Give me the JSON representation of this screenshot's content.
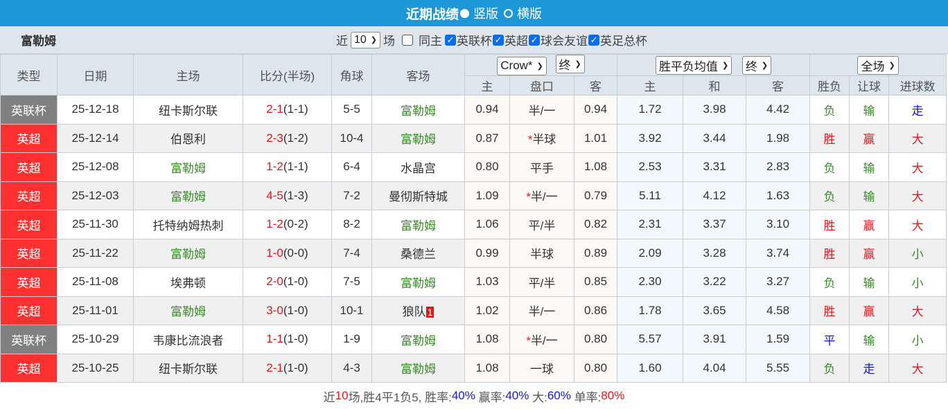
{
  "title": {
    "text": "近期战绩",
    "option1": "竖版",
    "option2": "横版",
    "selected": "竖版"
  },
  "filter": {
    "team": "富勒姆",
    "prefix": "近",
    "count": "10",
    "suffix": "场",
    "same_host": "同主",
    "same_host_checked": false,
    "leagues": [
      {
        "label": "英联杯",
        "checked": true
      },
      {
        "label": "英超",
        "checked": true
      },
      {
        "label": "球会友谊",
        "checked": true
      },
      {
        "label": "英足总杯",
        "checked": true
      }
    ]
  },
  "header": {
    "cols": [
      "类型",
      "日期",
      "主场",
      "比分(半场)",
      "角球",
      "客场"
    ],
    "company": "Crow*",
    "company_time": "终",
    "avg": "胜平负均值",
    "avg_time": "终",
    "scope": "全场",
    "sub": [
      "主",
      "盘口",
      "客",
      "主",
      "和",
      "客",
      "胜负",
      "让球",
      "进球数"
    ]
  },
  "colors": {
    "title_bar": "#1e97d9",
    "cup": "#808080",
    "league": "#fe3030",
    "win": "#e8141b",
    "lose": "#3a8a2a",
    "draw": "#1515e0",
    "fulham": "#3a8a2a"
  },
  "rows": [
    {
      "type": "英联杯",
      "date": "25-12-18",
      "home": "纽卡斯尔联",
      "score": "2-1",
      "half": "(1-1)",
      "corner": "5-5",
      "away": "富勒姆",
      "h": "0.94",
      "star": "",
      "line": "半/一",
      "a": "0.94",
      "w": "1.72",
      "d": "3.98",
      "l": "4.42",
      "r1": "负",
      "r2": "输",
      "r3": "走"
    },
    {
      "type": "英超",
      "date": "25-12-14",
      "home": "伯恩利",
      "score": "2-3",
      "half": "(1-2)",
      "corner": "10-4",
      "away": "富勒姆",
      "h": "0.87",
      "star": "*",
      "line": "半球",
      "a": "1.01",
      "w": "3.92",
      "d": "3.44",
      "l": "1.98",
      "r1": "胜",
      "r2": "赢",
      "r3": "大"
    },
    {
      "type": "英超",
      "date": "25-12-08",
      "home": "富勒姆",
      "score": "1-2",
      "half": "(1-1)",
      "corner": "6-4",
      "away": "水晶宫",
      "h": "0.80",
      "star": "",
      "line": "平手",
      "a": "1.08",
      "w": "2.53",
      "d": "3.31",
      "l": "2.83",
      "r1": "负",
      "r2": "输",
      "r3": "大"
    },
    {
      "type": "英超",
      "date": "25-12-03",
      "home": "富勒姆",
      "score": "4-5",
      "half": "(1-3)",
      "corner": "7-2",
      "away": "曼彻斯特城",
      "h": "1.09",
      "star": "*",
      "line": "半/一",
      "a": "0.79",
      "w": "5.11",
      "d": "4.12",
      "l": "1.63",
      "r1": "负",
      "r2": "输",
      "r3": "大"
    },
    {
      "type": "英超",
      "date": "25-11-30",
      "home": "托特纳姆热刺",
      "score": "1-2",
      "half": "(0-2)",
      "corner": "8-2",
      "away": "富勒姆",
      "h": "1.06",
      "star": "",
      "line": "平/半",
      "a": "0.82",
      "w": "2.31",
      "d": "3.37",
      "l": "3.10",
      "r1": "胜",
      "r2": "赢",
      "r3": "大"
    },
    {
      "type": "英超",
      "date": "25-11-22",
      "home": "富勒姆",
      "score": "1-0",
      "half": "(0-0)",
      "corner": "7-4",
      "away": "桑德兰",
      "h": "0.99",
      "star": "",
      "line": "半球",
      "a": "0.89",
      "w": "2.09",
      "d": "3.28",
      "l": "3.74",
      "r1": "胜",
      "r2": "赢",
      "r3": "小"
    },
    {
      "type": "英超",
      "date": "25-11-08",
      "home": "埃弗顿",
      "score": "2-0",
      "half": "(1-0)",
      "corner": "7-5",
      "away": "富勒姆",
      "h": "1.03",
      "star": "",
      "line": "平/半",
      "a": "0.85",
      "w": "2.30",
      "d": "3.22",
      "l": "3.27",
      "r1": "负",
      "r2": "输",
      "r3": "小"
    },
    {
      "type": "英超",
      "date": "25-11-01",
      "home": "富勒姆",
      "score": "3-0",
      "half": "(1-0)",
      "corner": "10-1",
      "away": "狼队",
      "away_badge": "1",
      "h": "1.02",
      "star": "",
      "line": "半/一",
      "a": "0.86",
      "w": "1.78",
      "d": "3.65",
      "l": "4.58",
      "r1": "胜",
      "r2": "赢",
      "r3": "大"
    },
    {
      "type": "英联杯",
      "date": "25-10-29",
      "home": "韦康比流浪者",
      "score": "1-1",
      "half": "(1-0)",
      "corner": "1-9",
      "away": "富勒姆",
      "h": "1.08",
      "star": "*",
      "line": "半/一",
      "a": "0.80",
      "w": "5.57",
      "d": "3.91",
      "l": "1.59",
      "r1": "平",
      "r2": "输",
      "r3": "小"
    },
    {
      "type": "英超",
      "date": "25-10-25",
      "home": "纽卡斯尔联",
      "score": "2-1",
      "half": "(1-0)",
      "corner": "4-3",
      "away": "富勒姆",
      "h": "1.08",
      "star": "",
      "line": "一球",
      "a": "0.80",
      "w": "1.60",
      "d": "4.04",
      "l": "5.55",
      "r1": "负",
      "r2": "走",
      "r3": "大"
    }
  ],
  "footer": {
    "p1": "近",
    "n": "10",
    "p2": "场,胜4平1负5, 胜率:",
    "win_rate": "40%",
    "p3": " 赢率:",
    "cover_rate": "40%",
    "p4": " 大:",
    "over_rate": "60%",
    "p5": " 单率:",
    "odd_rate": "80%"
  }
}
